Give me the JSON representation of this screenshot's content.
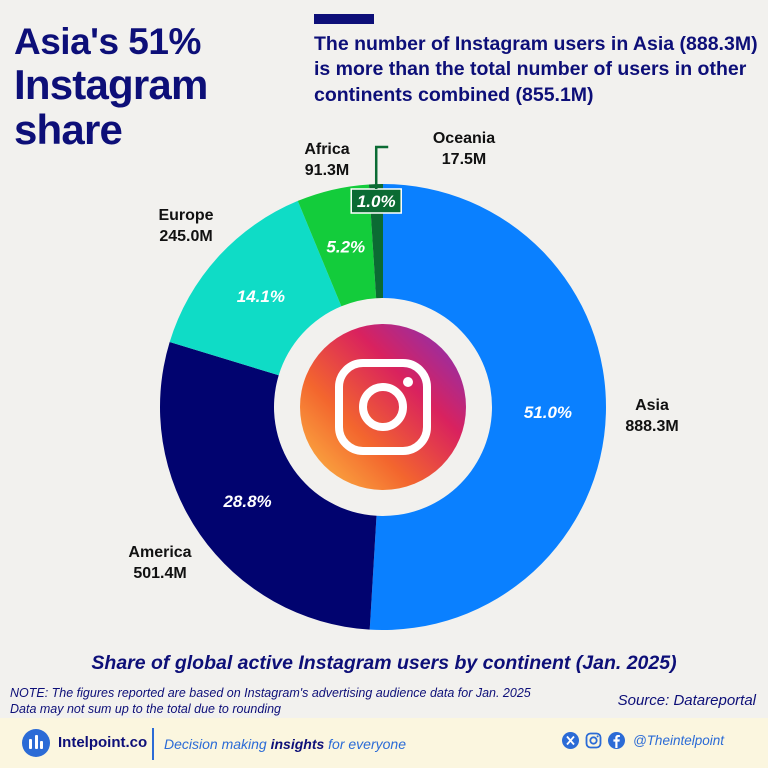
{
  "headline": {
    "line1": "Asia's 51%",
    "line2": "Instagram",
    "line3": "share"
  },
  "callout": "The number of Instagram users in Asia (888.3M) is more than the total number of users in other continents combined (855.1M)",
  "chart_data": {
    "type": "pie",
    "title": "Share of global active Instagram users by continent (Jan. 2025)",
    "donut": true,
    "categories": [
      "Asia",
      "America",
      "Europe",
      "Africa",
      "Oceania"
    ],
    "values_millions": [
      888.3,
      501.4,
      245.0,
      91.3,
      17.5
    ],
    "value_labels": [
      "888.3M",
      "501.4M",
      "245.0M",
      "91.3M",
      "17.5M"
    ],
    "shares_percent": [
      51.0,
      28.8,
      14.1,
      5.2,
      1.0
    ],
    "share_labels": [
      "51.0%",
      "28.8%",
      "14.1%",
      "5.2%",
      "1.0%"
    ],
    "colors": [
      "#0a80ff",
      "#01036f",
      "#0fdcc6",
      "#13cc3b",
      "#0b6b33"
    ]
  },
  "center_icon": "instagram-logo",
  "note": {
    "line1": "NOTE: The figures reported are based on Instagram's advertising audience data for Jan. 2025",
    "line2": "Data may not sum up to the total due to rounding"
  },
  "source": "Source: Datareportal",
  "footer": {
    "brand": "Intelpoint.co",
    "tagline_before": "Decision making ",
    "tagline_bold": "insights",
    "tagline_after": " for everyone",
    "social_icons": [
      "x-icon",
      "instagram-icon",
      "facebook-icon"
    ],
    "handle": "@Theintelpoint"
  },
  "colors": {
    "navy": "#0d0f78",
    "accent_blue": "#2b6bd6",
    "background": "#f2f1ee",
    "footer_bg": "#fbf6df"
  }
}
